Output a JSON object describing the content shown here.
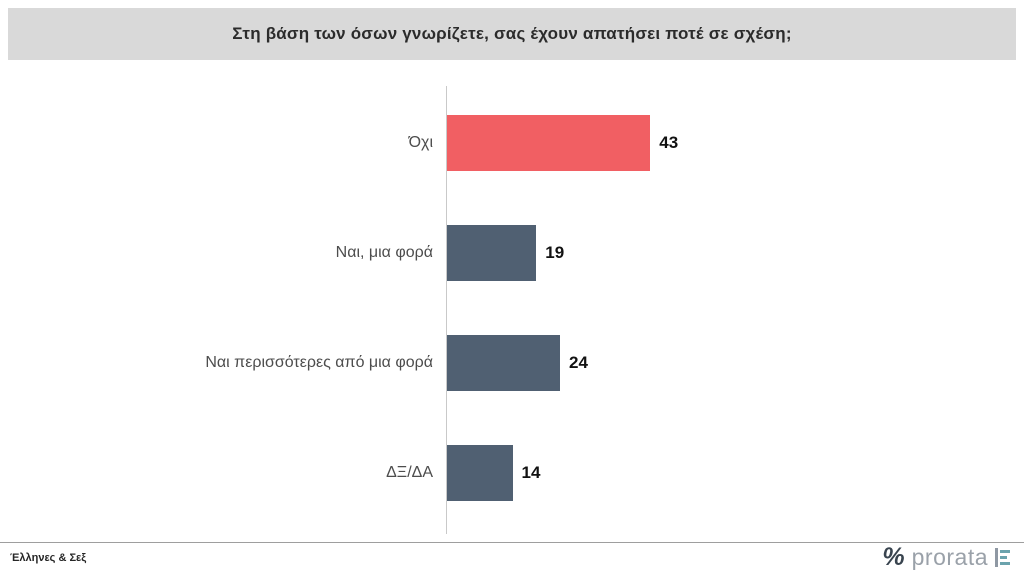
{
  "title": "Στη βάση των όσων γνωρίζετε, σας έχουν απατήσει ποτέ σε σχέση;",
  "chart_data": {
    "type": "bar",
    "orientation": "horizontal",
    "title": "Στη βάση των όσων γνωρίζετε, σας έχουν απατήσει ποτέ σε σχέση;",
    "categories": [
      "Όχι",
      "Ναι, μια φορά",
      "Ναι περισσότερες από μια φορά",
      "ΔΞ/ΔΑ"
    ],
    "values": [
      43,
      19,
      24,
      14
    ],
    "bar_colors": [
      "#f15f63",
      "#506072",
      "#506072",
      "#506072"
    ],
    "xlabel": "",
    "ylabel": "",
    "xlim": [
      0,
      100
    ],
    "grid": false,
    "legend": false,
    "value_labels": true
  },
  "colors": {
    "banner_bg": "#d9d9d9",
    "accent_red": "#f15f63",
    "slate": "#506072",
    "brand_gray": "#9aa1a9"
  },
  "footer": {
    "source": "Έλληνες & Σεξ",
    "percent_icon": "%",
    "brand": "prorata"
  }
}
